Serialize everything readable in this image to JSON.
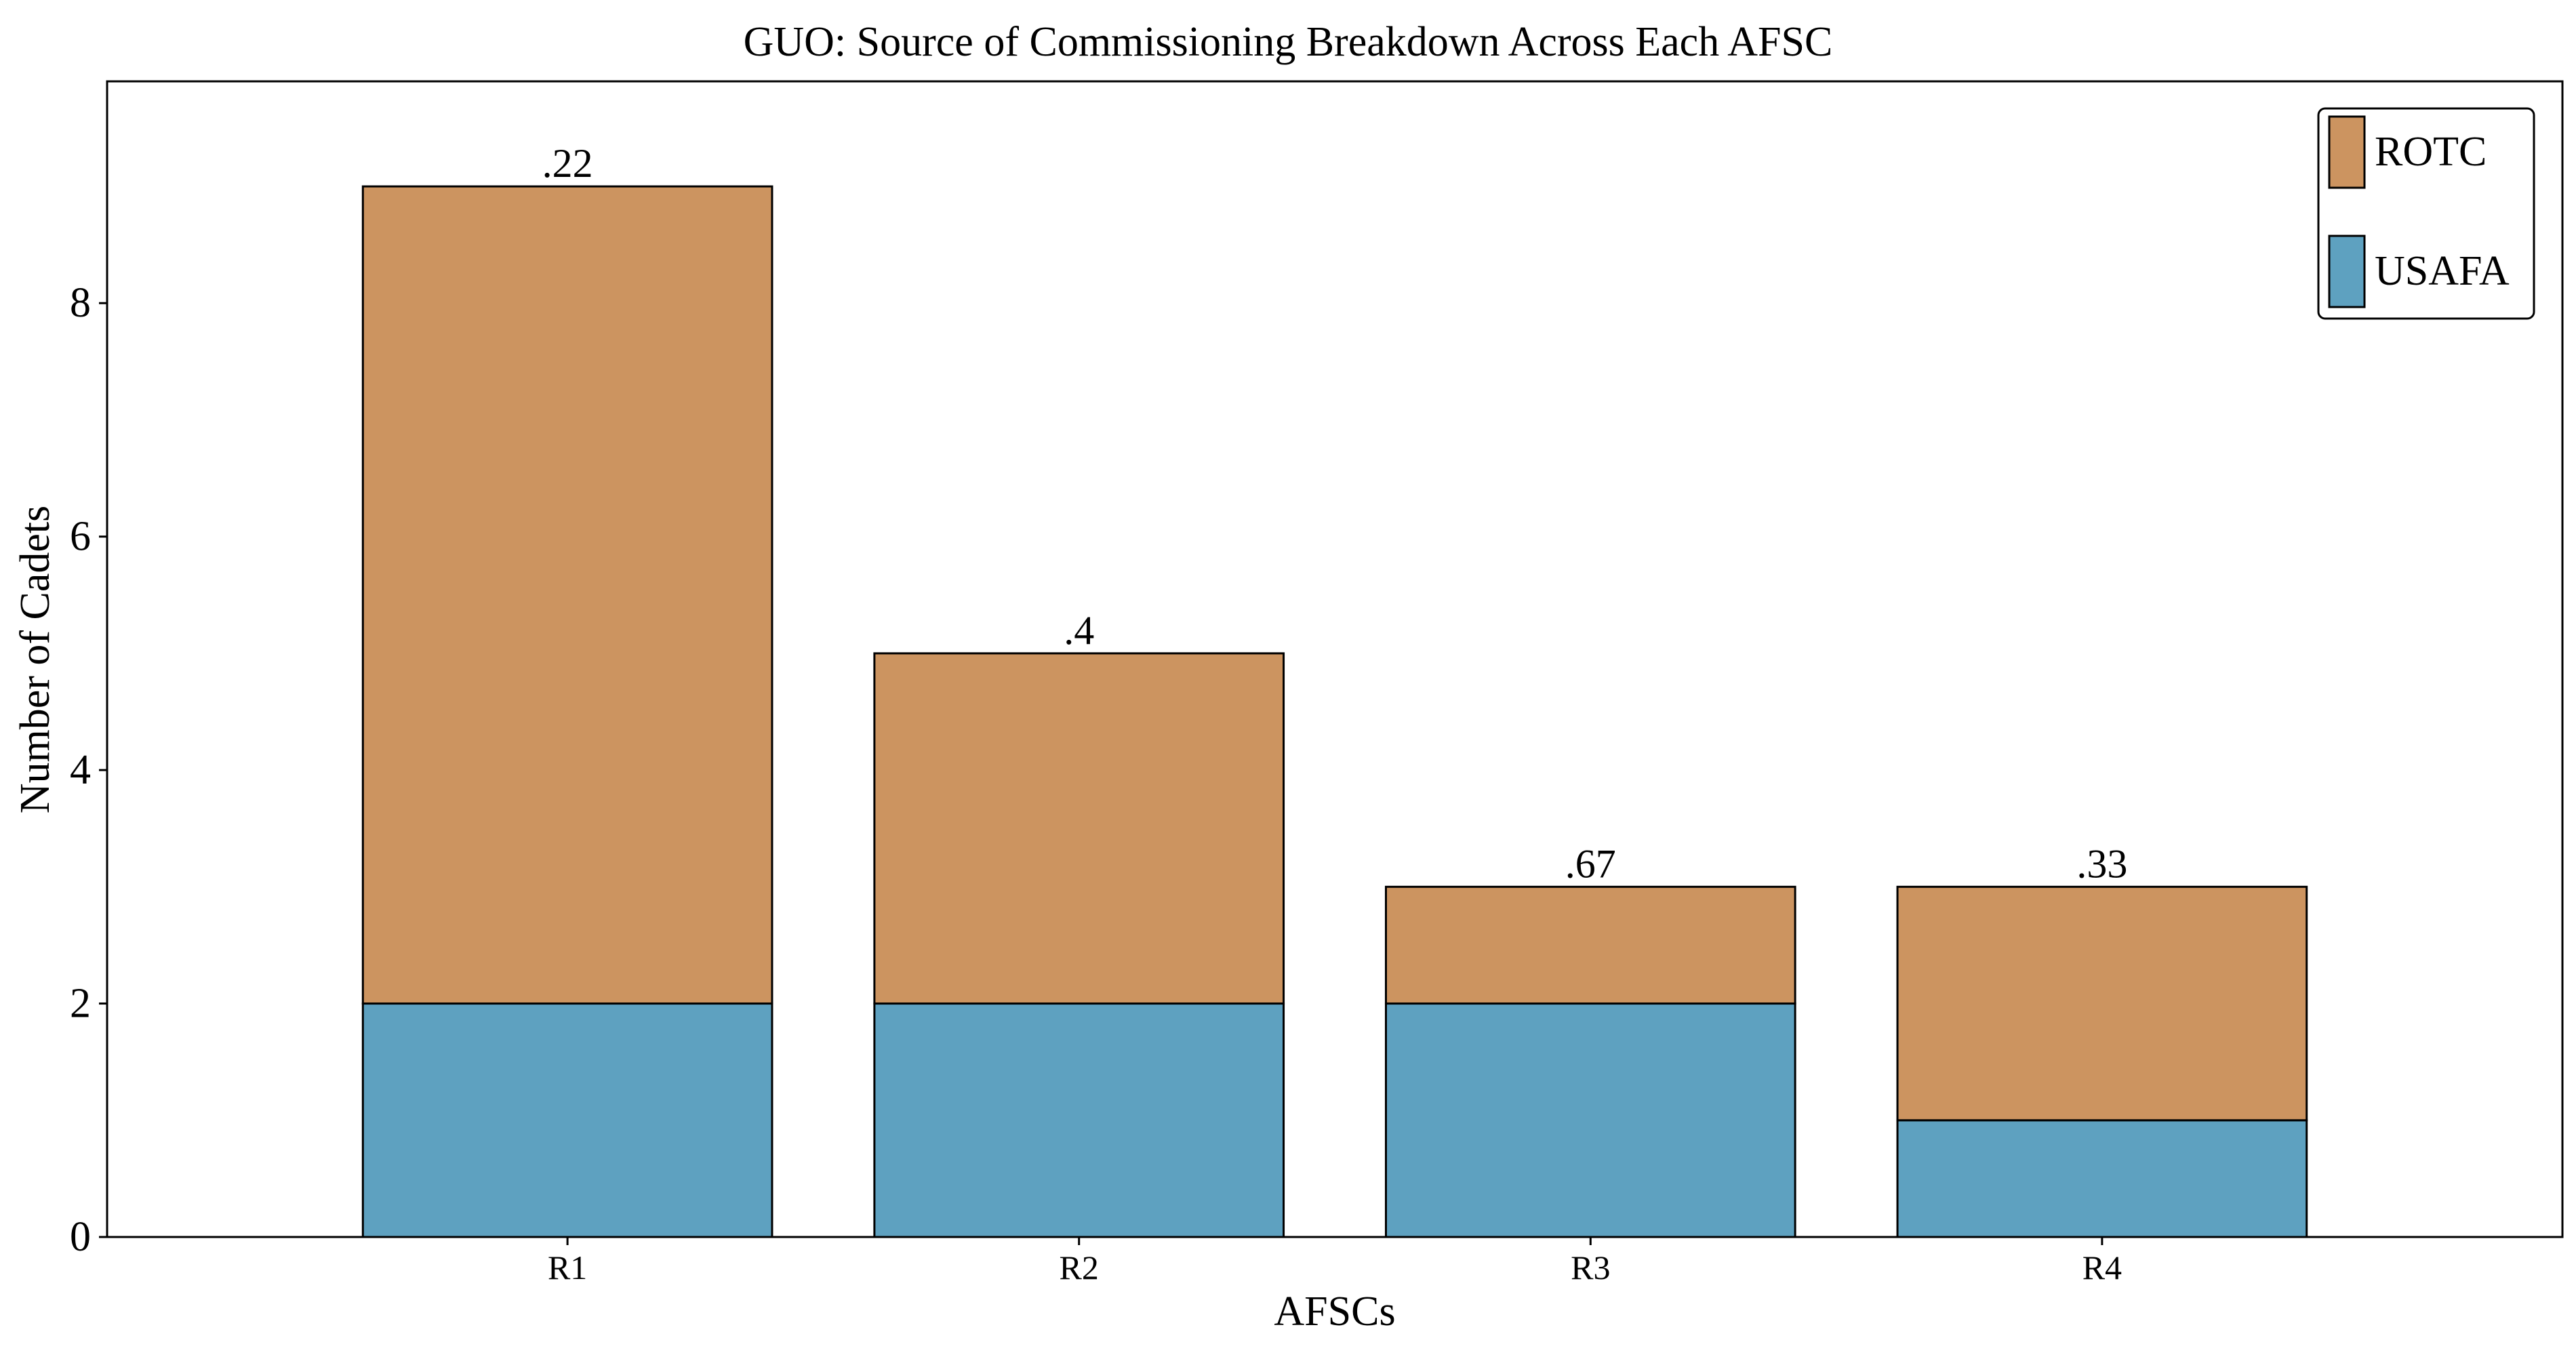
{
  "chart_data": {
    "type": "bar",
    "stacked": true,
    "title": "GUO: Source of Commissioning Breakdown Across Each AFSC",
    "xlabel": "AFSCs",
    "ylabel": "Number of Cadets",
    "categories": [
      "R1",
      "R2",
      "R3",
      "R4"
    ],
    "category_label_colors": [
      "#0000ff",
      "#ff0000",
      "#000000",
      "#ff0000"
    ],
    "series": [
      {
        "name": "USAFA",
        "color": "#5ea1c0",
        "values": [
          2,
          2,
          2,
          1
        ]
      },
      {
        "name": "ROTC",
        "color": "#cc9460",
        "values": [
          7,
          3,
          1,
          2
        ]
      }
    ],
    "bar_labels": [
      ".22",
      ".4",
      ".67",
      ".33"
    ],
    "yticks": [
      "0",
      "2",
      "4",
      "6",
      "8"
    ],
    "ylim": [
      0,
      9.9
    ],
    "legend": {
      "placement": "top-right",
      "order": [
        "ROTC",
        "USAFA"
      ]
    },
    "grid": false
  }
}
